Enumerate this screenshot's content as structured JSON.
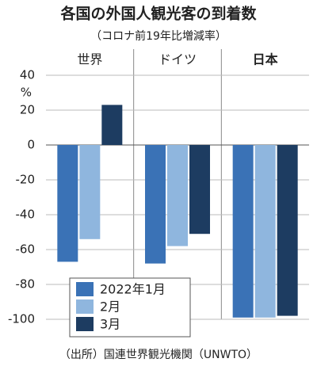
{
  "chart_data": {
    "type": "bar",
    "title": "各国の外国人観光客の到着数",
    "subtitle": "（コロナ前19年比増減率）",
    "y_unit": "%",
    "source": "（出所）国連世界観光機関（UNWTO）",
    "categories": [
      "世界",
      "ドイツ",
      "日本"
    ],
    "series": [
      {
        "name": "2022年1月",
        "color": "#3a72b6",
        "values": [
          -67,
          -68,
          -99
        ]
      },
      {
        "name": "2月",
        "color": "#8fb6de",
        "values": [
          -54,
          -58,
          -99
        ]
      },
      {
        "name": "3月",
        "color": "#1d3c61",
        "values": [
          23,
          -51,
          -98
        ]
      }
    ],
    "ylim": [
      -100,
      40
    ],
    "yticks": [
      -100,
      -80,
      -60,
      -40,
      -20,
      0,
      20,
      40
    ],
    "grid": true
  }
}
